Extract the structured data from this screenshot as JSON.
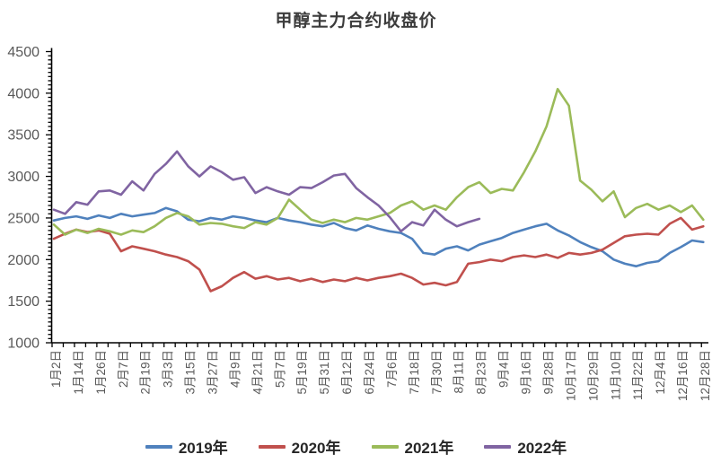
{
  "title": "甲醇主力合约收盘价",
  "chart_data": {
    "type": "line",
    "title": "甲醇主力合约收盘价",
    "xlabel": "",
    "ylabel": "",
    "ylim": [
      1000,
      4500
    ],
    "y_major_step": 500,
    "y_minor_step": 50,
    "grid": false,
    "legend_position": "bottom",
    "axis_color": "#000000",
    "tick_label_color": "#595959",
    "y_tick_labels": [
      "4500",
      "4000",
      "3500",
      "3000",
      "2500",
      "2000",
      "1500",
      "1000"
    ],
    "x_tick_labels": [
      "1月2日",
      "1月14日",
      "1月26日",
      "2月7日",
      "2月19日",
      "3月3日",
      "3月15日",
      "3月27日",
      "4月9日",
      "4月21日",
      "5月7日",
      "5月19日",
      "5月31日",
      "6月12日",
      "6月24日",
      "7月6日",
      "7月18日",
      "7月30日",
      "8月11日",
      "8月23日",
      "9月4日",
      "9月16日",
      "9月28日",
      "10月17日",
      "10月29日",
      "11月10日",
      "11月22日",
      "12月4日",
      "12月16日",
      "12月28日"
    ],
    "samples_per_label_gap": 2,
    "series": [
      {
        "name": "2019年",
        "color": "#4F81BD",
        "values": [
          2470,
          2500,
          2520,
          2490,
          2530,
          2500,
          2550,
          2520,
          2540,
          2560,
          2620,
          2580,
          2480,
          2460,
          2500,
          2480,
          2520,
          2500,
          2470,
          2450,
          2500,
          2470,
          2450,
          2420,
          2400,
          2440,
          2380,
          2350,
          2410,
          2370,
          2340,
          2320,
          2250,
          2080,
          2060,
          2130,
          2160,
          2110,
          2180,
          2220,
          2260,
          2320,
          2360,
          2400,
          2430,
          2350,
          2290,
          2210,
          2150,
          2100,
          2000,
          1950,
          1920,
          1960,
          1980,
          2080,
          2150,
          2230,
          2210
        ]
      },
      {
        "name": "2020年",
        "color": "#C0504D",
        "values": [
          2250,
          2310,
          2360,
          2330,
          2350,
          2310,
          2100,
          2160,
          2130,
          2100,
          2060,
          2030,
          1980,
          1880,
          1620,
          1680,
          1780,
          1850,
          1770,
          1800,
          1760,
          1780,
          1740,
          1770,
          1730,
          1760,
          1740,
          1780,
          1750,
          1780,
          1800,
          1830,
          1780,
          1700,
          1720,
          1690,
          1730,
          1950,
          1970,
          2000,
          1980,
          2030,
          2050,
          2030,
          2060,
          2020,
          2080,
          2060,
          2080,
          2120,
          2200,
          2280,
          2300,
          2310,
          2300,
          2430,
          2500,
          2360,
          2400
        ]
      },
      {
        "name": "2021年",
        "color": "#9BBB59",
        "values": [
          2420,
          2300,
          2360,
          2320,
          2370,
          2340,
          2300,
          2350,
          2330,
          2400,
          2500,
          2560,
          2520,
          2420,
          2440,
          2430,
          2400,
          2380,
          2450,
          2420,
          2500,
          2720,
          2600,
          2480,
          2440,
          2480,
          2450,
          2500,
          2480,
          2520,
          2560,
          2650,
          2700,
          2600,
          2650,
          2600,
          2750,
          2870,
          2930,
          2800,
          2850,
          2830,
          3050,
          3300,
          3600,
          4050,
          3850,
          2950,
          2840,
          2700,
          2820,
          2510,
          2620,
          2670,
          2600,
          2650,
          2570,
          2650,
          2480
        ]
      },
      {
        "name": "2022年",
        "color": "#8064A2",
        "values": [
          2600,
          2550,
          2690,
          2660,
          2820,
          2830,
          2780,
          2940,
          2830,
          3030,
          3150,
          3300,
          3120,
          3000,
          3120,
          3050,
          2960,
          2990,
          2800,
          2870,
          2820,
          2780,
          2870,
          2860,
          2930,
          3010,
          3030,
          2860,
          2750,
          2650,
          2510,
          2340,
          2450,
          2410,
          2600,
          2480,
          2400,
          2450,
          2490
        ]
      }
    ]
  }
}
